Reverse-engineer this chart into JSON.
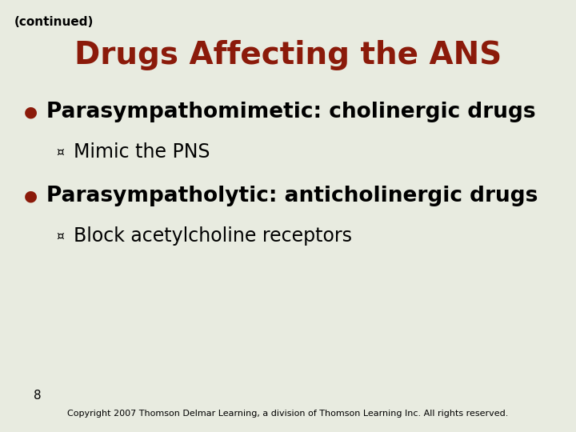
{
  "bg_color": "#e8ebe0",
  "continued_text": "(continued)",
  "continued_color": "#000000",
  "continued_fontsize": 11,
  "title": "Drugs Affecting the ANS",
  "title_color": "#8b1a0a",
  "title_fontsize": 28,
  "bullet_color": "#8b1a0a",
  "bullet1_text": "Parasympathomimetic: cholinergic drugs",
  "bullet1_fontsize": 19,
  "sub1_text": "Mimic the PNS",
  "sub1_fontsize": 17,
  "bullet2_text": "Parasympatholytic: anticholinergic drugs",
  "bullet2_fontsize": 19,
  "sub2_text": "Block acetylcholine receptors",
  "sub2_fontsize": 17,
  "body_color": "#000000",
  "page_number": "8",
  "copyright_text": "Copyright 2007 Thomson Delmar Learning, a division of Thomson Learning Inc. All rights reserved.",
  "copyright_fontsize": 8,
  "page_num_fontsize": 11
}
